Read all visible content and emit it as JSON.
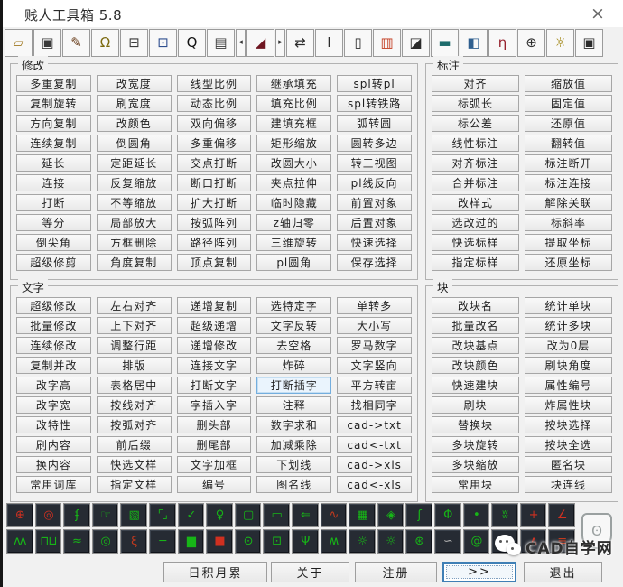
{
  "window": {
    "title": "贱人工具箱 5.8",
    "close_glyph": "×"
  },
  "toolbar": {
    "items": [
      {
        "name": "open-folder-icon",
        "glyph": "▱",
        "color": "#a07820"
      },
      {
        "name": "printer-icon",
        "glyph": "▣",
        "color": "#3a3a3a"
      },
      {
        "name": "brush-icon",
        "glyph": "✎",
        "color": "#6b3f1d"
      },
      {
        "name": "ink-bottle-icon",
        "glyph": "Ω",
        "color": "#7c6a10"
      },
      {
        "name": "printer-settings-icon",
        "glyph": "⊟",
        "color": "#3a3a3a"
      },
      {
        "name": "window-icon",
        "glyph": "⊡",
        "color": "#2f4f8f"
      },
      {
        "name": "search-icon",
        "glyph": "Q",
        "color": "#141414"
      },
      {
        "name": "ruler-icon",
        "glyph": "▤",
        "color": "#3a3a3a"
      },
      {
        "name": "prev-arrow-icon",
        "glyph": "◂",
        "color": "#333333",
        "narrow": true
      },
      {
        "name": "eraser-icon",
        "glyph": "◢",
        "color": "#6e1520"
      },
      {
        "name": "next-arrow-icon",
        "glyph": "▸",
        "color": "#333333",
        "narrow": true
      },
      {
        "name": "swap-arrows-icon",
        "glyph": "⇄",
        "color": "#2b2b2b"
      },
      {
        "name": "text-cursor-icon",
        "glyph": "I",
        "color": "#2b2b2b"
      },
      {
        "name": "document-icon",
        "glyph": "▯",
        "color": "#2b2b2b"
      },
      {
        "name": "color-bars-icon",
        "glyph": "▥",
        "color": "#c23a1e"
      },
      {
        "name": "edit-document-icon",
        "glyph": "◪",
        "color": "#2b2b2b"
      },
      {
        "name": "panel-icon",
        "glyph": "▬",
        "color": "#1d6b6b"
      },
      {
        "name": "notebook-icon",
        "glyph": "◧",
        "color": "#2f5f8f"
      },
      {
        "name": "ribbon-icon",
        "glyph": "η",
        "color": "#96202c"
      },
      {
        "name": "crosshair-icon",
        "glyph": "⊕",
        "color": "#2b2b2b"
      },
      {
        "name": "gear-icon",
        "glyph": "☼",
        "color": "#9a7d00"
      },
      {
        "name": "camera-icon",
        "glyph": "▣",
        "color": "#2b2b2b"
      }
    ]
  },
  "groups": {
    "modify": {
      "id": "modify",
      "label": "修改",
      "columns": 5,
      "buttons": [
        "多重复制",
        "改宽度",
        "线型比例",
        "继承填充",
        "spl转pl",
        "复制旋转",
        "刷宽度",
        "动态比例",
        "填充比例",
        "spl转铁路",
        "方向复制",
        "改颜色",
        "双向偏移",
        "建填充框",
        "弧转圆",
        "连续复制",
        "倒圆角",
        "多重偏移",
        "矩形缩放",
        "圆转多边",
        "延长",
        "定距延长",
        "交点打断",
        "改圆大小",
        "转三视图",
        "连接",
        "反复缩放",
        "断口打断",
        "夹点拉伸",
        "pl线反向",
        "打断",
        "不等缩放",
        "扩大打断",
        "临时隐藏",
        "前置对象",
        "等分",
        "局部放大",
        "按弧阵列",
        "z轴归零",
        "后置对象",
        "倒尖角",
        "方框删除",
        "路径阵列",
        "三维旋转",
        "快速选择",
        "超级修剪",
        "角度复制",
        "顶点复制",
        "pl圆角",
        "保存选择"
      ]
    },
    "dimension": {
      "id": "dimension",
      "label": "标注",
      "columns": 2,
      "buttons": [
        "对齐",
        "缩放值",
        "标弧长",
        "固定值",
        "标公差",
        "还原值",
        "线性标注",
        "翻转值",
        "对齐标注",
        "标注断开",
        "合并标注",
        "标注连接",
        "改样式",
        "解除关联",
        "选改过的",
        "标斜率",
        "快选标样",
        "提取坐标",
        "指定标样",
        "还原坐标"
      ]
    },
    "text": {
      "id": "text",
      "label": "文字",
      "columns": 5,
      "focused_index": 23,
      "buttons": [
        "超级修改",
        "左右对齐",
        "递增复制",
        "选特定字",
        "单转多",
        "批量修改",
        "上下对齐",
        "超级递增",
        "文字反转",
        "大小写",
        "连续修改",
        "调整行距",
        "递增修改",
        "去空格",
        "罗马数字",
        "复制并改",
        "排版",
        "连接文字",
        "炸碎",
        "文字竖向",
        "改字高",
        "表格居中",
        "打断文字",
        "打断插字",
        "平方转亩",
        "改字宽",
        "按线对齐",
        "字插入字",
        "注释",
        "找相同字",
        "改特性",
        "按弧对齐",
        "删头部",
        "数字求和",
        "cad->txt",
        "刷内容",
        "前后缀",
        "删尾部",
        "加减乘除",
        "cad<-txt",
        "换内容",
        "快选文样",
        "文字加框",
        "下划线",
        "cad->xls",
        "常用词库",
        "指定文样",
        "编号",
        "图名线",
        "cad<-xls"
      ]
    },
    "block": {
      "id": "block",
      "label": "块",
      "columns": 2,
      "buttons": [
        "改块名",
        "统计单块",
        "批量改名",
        "统计多块",
        "改块基点",
        "改为0层",
        "改块颜色",
        "刷块角度",
        "快速建块",
        "属性编号",
        "刷块",
        "炸属性块",
        "替换块",
        "按块选择",
        "多块旋转",
        "按块全选",
        "多块缩放",
        "匿名块",
        "常用块",
        "块连线"
      ]
    }
  },
  "palette": {
    "row1": [
      {
        "name": "target-cross-icon",
        "glyph": "⊕",
        "color": "#d03020"
      },
      {
        "name": "target-circle-icon",
        "glyph": "◎",
        "color": "#d03020"
      },
      {
        "name": "axis-squiggle-icon",
        "glyph": "ʄ",
        "color": "#17b517"
      },
      {
        "name": "hand-icon",
        "glyph": "☞",
        "color": "#17b517"
      },
      {
        "name": "fence-icon",
        "glyph": "▧",
        "color": "#17b517"
      },
      {
        "name": "corner-marks-icon",
        "glyph": "⌜⌟",
        "color": "#17b517"
      },
      {
        "name": "check-icon",
        "glyph": "✓",
        "color": "#17b517"
      },
      {
        "name": "lamp-icon",
        "glyph": "♀",
        "color": "#17b517"
      },
      {
        "name": "dashed-rect-icon",
        "glyph": "▢",
        "color": "#17b517"
      },
      {
        "name": "callout-icon",
        "glyph": "▭",
        "color": "#17b517"
      },
      {
        "name": "arrow-left-icon",
        "glyph": "⇐",
        "color": "#17b517"
      },
      {
        "name": "curve-icon",
        "glyph": "∿",
        "color": "#c23a1e"
      },
      {
        "name": "table-icon",
        "glyph": "▦",
        "color": "#17b517"
      },
      {
        "name": "star-icon",
        "glyph": "◈",
        "color": "#17b517"
      },
      {
        "name": "squiggle-icon",
        "glyph": "ʃ",
        "color": "#17b517"
      },
      {
        "name": "circle-diameter-icon",
        "glyph": "Φ",
        "color": "#17b517"
      },
      {
        "name": "dot-icon",
        "glyph": "•",
        "color": "#17b517"
      },
      {
        "name": "hatch-icon",
        "glyph": "ʬ",
        "color": "#17b517"
      },
      {
        "name": "red-cross-icon",
        "glyph": "+",
        "color": "#d03020"
      },
      {
        "name": "angle-icon",
        "glyph": "∠",
        "color": "#d03020"
      }
    ],
    "row2": [
      {
        "name": "zigzag-icon",
        "glyph": "ʌʌ",
        "color": "#17b517"
      },
      {
        "name": "square-wave-icon",
        "glyph": "⊓⊔",
        "color": "#17b517"
      },
      {
        "name": "wave-icon",
        "glyph": "≈",
        "color": "#17b517"
      },
      {
        "name": "rings-icon",
        "glyph": "◎",
        "color": "#17b517"
      },
      {
        "name": "hook-icon",
        "glyph": "ξ",
        "color": "#c23a1e"
      },
      {
        "name": "dash-icon",
        "glyph": "─",
        "color": "#17b517"
      },
      {
        "name": "filled-rect-icon",
        "glyph": "▆",
        "color": "#17b517"
      },
      {
        "name": "red-square-icon",
        "glyph": "■",
        "color": "#d03020"
      },
      {
        "name": "clock-icon",
        "glyph": "⊙",
        "color": "#17b517"
      },
      {
        "name": "boxed-dot-icon",
        "glyph": "⊡",
        "color": "#17b517"
      },
      {
        "name": "antenna-icon",
        "glyph": "Ψ",
        "color": "#17b517"
      },
      {
        "name": "peaks-icon",
        "glyph": "ʍ",
        "color": "#17b517"
      },
      {
        "name": "gear-icon",
        "glyph": "☼",
        "color": "#17b517"
      },
      {
        "name": "gear-dot-icon",
        "glyph": "☼",
        "color": "#17b517"
      },
      {
        "name": "star-circle-icon",
        "glyph": "⊛",
        "color": "#17b517"
      },
      {
        "name": "pipe-icon",
        "glyph": "∽",
        "color": "#b0b0b0"
      },
      {
        "name": "spiral-icon",
        "glyph": "@",
        "color": "#17b517"
      },
      {
        "name": "blob-icon",
        "glyph": "⊚",
        "color": "#17b517"
      },
      {
        "name": "chevron-icon",
        "glyph": "∧",
        "color": "#d03020"
      },
      {
        "name": "layers-icon",
        "glyph": "≡",
        "color": "#c23a1e"
      }
    ]
  },
  "bottom_bar": {
    "buttons": [
      "日积月累",
      "关于",
      "注册",
      ">>",
      "退出"
    ]
  },
  "watermark": {
    "text": "CAD自学网"
  },
  "colors": {
    "dialog_bg": "#f1f1f1",
    "palette_bg": "#262b33",
    "icon_green": "#17b517",
    "icon_red": "#d03020",
    "focus_blue": "#3f7fb5"
  }
}
